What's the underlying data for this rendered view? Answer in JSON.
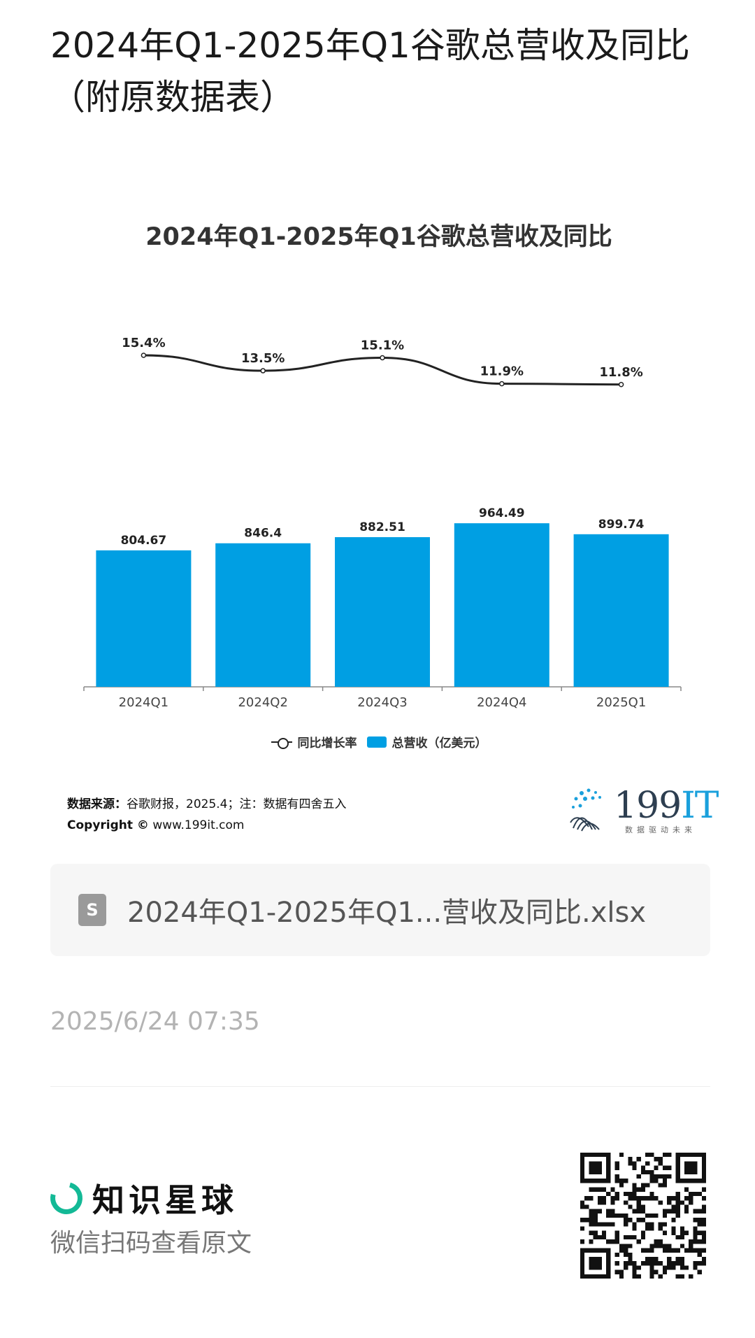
{
  "post": {
    "title": "2024年Q1-2025年Q1谷歌总营收及同比（附原数据表）"
  },
  "chart_data": {
    "type": "bar+line",
    "title": "2024年Q1-2025年Q1谷歌总营收及同比",
    "categories": [
      "2024Q1",
      "2024Q2",
      "2024Q3",
      "2024Q4",
      "2025Q1"
    ],
    "series": [
      {
        "name": "总营收（亿美元）",
        "type": "bar",
        "color": "#009fe3",
        "values": [
          804.67,
          846.4,
          882.51,
          964.49,
          899.74
        ],
        "labels": [
          "804.67",
          "846.4",
          "882.51",
          "964.49",
          "899.74"
        ]
      },
      {
        "name": "同比增长率",
        "type": "line",
        "color": "#222222",
        "values": [
          15.4,
          13.5,
          15.1,
          11.9,
          11.8
        ],
        "labels": [
          "15.4%",
          "13.5%",
          "15.1%",
          "11.9%",
          "11.8%"
        ]
      }
    ],
    "legend_position": "bottom",
    "grid": false
  },
  "source": {
    "label": "数据来源：",
    "text": "谷歌财报，2025.4；注：数据有四舍五入",
    "copyright_label": "Copyright ©",
    "copyright_url": "www.199it.com"
  },
  "brand": {
    "main": "199",
    "accent": "IT",
    "tagline": "数据驱动未来"
  },
  "attachment": {
    "file_name": "2024年Q1-2025年Q1...营收及同比.xlsx",
    "icon": "spreadsheet-icon"
  },
  "meta": {
    "timestamp": "2025/6/24 07:35"
  },
  "footer": {
    "app_name": "知识星球",
    "scan_hint": "微信扫码查看原文",
    "qr_icon": "qr-code-icon"
  }
}
